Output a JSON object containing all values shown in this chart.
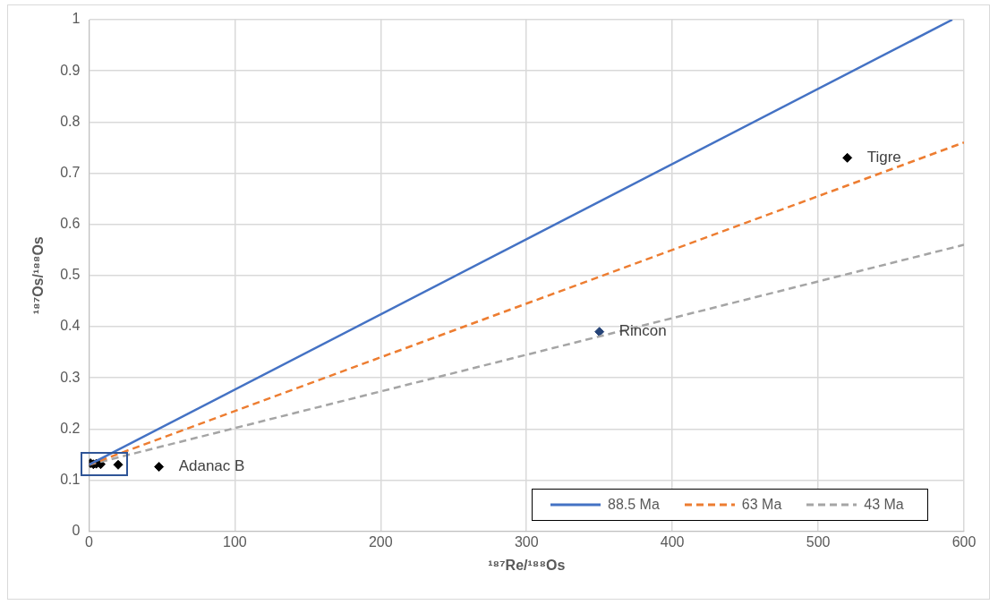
{
  "chart_data": {
    "type": "scatter",
    "xlabel": "¹⁸⁷Re/¹⁸⁸Os",
    "ylabel": "¹⁸⁷Os/¹⁸⁸Os",
    "xlim": [
      0,
      600
    ],
    "xticks": [
      0,
      100,
      200,
      300,
      400,
      500,
      600
    ],
    "ylim": [
      0,
      1
    ],
    "yticks": [
      0,
      0.1,
      0.2,
      0.3,
      0.4,
      0.5,
      0.6,
      0.7,
      0.8,
      0.9,
      1
    ],
    "grid": true,
    "legend": "bottom right",
    "marker": "diamond",
    "series": [
      {
        "type": "line",
        "name": "88.5 Ma",
        "color": "#4472c4",
        "line_style": "solid",
        "marker": "none",
        "x": [
          0,
          592
        ],
        "values": [
          0.13,
          1.0
        ]
      },
      {
        "type": "line",
        "name": "63 Ma",
        "color": "#ed7d31",
        "line_style": "dashed",
        "marker": "none",
        "x": [
          0,
          600
        ],
        "values": [
          0.13,
          0.76
        ]
      },
      {
        "type": "line",
        "name": "43 Ma",
        "color": "#a5a5a5",
        "line_style": "dashed",
        "marker": "none",
        "x": [
          0,
          600
        ],
        "values": [
          0.13,
          0.56
        ]
      },
      {
        "color": "#000000",
        "x": [
          1,
          3,
          5,
          8,
          20
        ],
        "values": [
          0.133,
          0.131,
          0.132,
          0.131,
          0.13
        ]
      },
      {
        "colors": [
          "#000000",
          "#264478",
          "#000000"
        ],
        "x": [
          48,
          350,
          520
        ],
        "values": [
          0.126,
          0.39,
          0.73
        ]
      }
    ],
    "annotations": [
      {
        "text": "Adanac B",
        "x": 48,
        "y": 0.126
      },
      {
        "text": "Rincon",
        "x": 350,
        "y": 0.39
      },
      {
        "text": "Tigre",
        "x": 520,
        "y": 0.73
      }
    ]
  }
}
